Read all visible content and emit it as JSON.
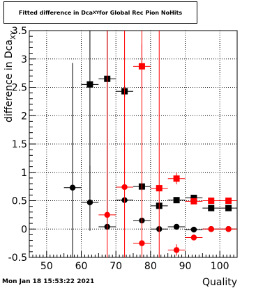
{
  "title_box": {
    "prefix": "Fitted difference in Dca",
    "subscript": "XY",
    "suffix": " for Global Rec Pion NoHits"
  },
  "timestamp": "Mon Jan 18 15:53:22 2021",
  "colors": {
    "series_black": "#000000",
    "series_red": "#ff0000",
    "grid": "#000000"
  },
  "chart_data": {
    "type": "scatter",
    "title": "Fitted difference in DcaXY for Global Rec Pion NoHits",
    "xlabel": "Quality",
    "ylabel": "difference in Dca",
    "ylabel_subscript": "XY",
    "xlim": [
      45,
      105
    ],
    "ylim": [
      -0.5,
      3.5
    ],
    "grid": true,
    "x_ticks": [
      50,
      60,
      70,
      80,
      90,
      100
    ],
    "x_tick_labels": [
      "50",
      "60",
      "70",
      "80",
      "90",
      "100"
    ],
    "y_ticks": [
      -0.5,
      0,
      0.5,
      1,
      1.5,
      2,
      2.5,
      3,
      3.5
    ],
    "y_tick_labels": [
      "-0.5",
      "0",
      "0.5",
      "1",
      "1.5",
      "2",
      "2.5",
      "3",
      "3.5"
    ],
    "series": [
      {
        "color": "#000000",
        "marker": "circle",
        "points": [
          {
            "x": 57.5,
            "y": 0.73,
            "xerr": 2.5,
            "yerr_low": 1.5,
            "yerr_high": 2.2
          },
          {
            "x": 62.5,
            "y": 0.47,
            "xerr": 2.5,
            "yerr_low": 0.5,
            "yerr_high": 0.65
          },
          {
            "x": 67.5,
            "y": 0.04,
            "xerr": 2.5,
            "yerr_low": 0.05,
            "yerr_high": 0.05
          },
          {
            "x": 72.5,
            "y": 0.51,
            "xerr": 2.5,
            "yerr_low": 0.05,
            "yerr_high": 0.05
          },
          {
            "x": 77.5,
            "y": 0.15,
            "xerr": 2.5,
            "yerr_low": 0.05,
            "yerr_high": 0.05
          },
          {
            "x": 82.5,
            "y": 0.0,
            "xerr": 2.5,
            "yerr_low": 0.03,
            "yerr_high": 0.03
          },
          {
            "x": 87.5,
            "y": 0.04,
            "xerr": 2.5,
            "yerr_low": 0.03,
            "yerr_high": 0.03
          },
          {
            "x": 92.5,
            "y": -0.01,
            "xerr": 2.5,
            "yerr_low": 0.02,
            "yerr_high": 0.02
          },
          {
            "x": 97.5,
            "y": 0.0,
            "xerr": 2.5,
            "yerr_low": 0.02,
            "yerr_high": 0.02
          },
          {
            "x": 102.5,
            "y": 0.0,
            "xerr": 2.5,
            "yerr_low": 0.02,
            "yerr_high": 0.02
          }
        ]
      },
      {
        "color": "#000000",
        "marker": "square",
        "points": [
          {
            "x": 62.5,
            "y": 2.55,
            "xerr": 2.5,
            "yerr_low": 2.0,
            "yerr_high": 1.0
          },
          {
            "x": 67.5,
            "y": 2.65,
            "xerr": 2.5,
            "yerr_low": 2.6,
            "yerr_high": 1.0
          },
          {
            "x": 72.5,
            "y": 2.43,
            "xerr": 2.5,
            "yerr_low": 0.1,
            "yerr_high": 0.1
          },
          {
            "x": 77.5,
            "y": 0.75,
            "xerr": 2.5,
            "yerr_low": 0.08,
            "yerr_high": 0.08
          },
          {
            "x": 82.5,
            "y": 0.41,
            "xerr": 2.5,
            "yerr_low": 0.05,
            "yerr_high": 0.05
          },
          {
            "x": 87.5,
            "y": 0.51,
            "xerr": 2.5,
            "yerr_low": 0.05,
            "yerr_high": 0.05
          },
          {
            "x": 92.5,
            "y": 0.55,
            "xerr": 2.5,
            "yerr_low": 0.05,
            "yerr_high": 0.05
          },
          {
            "x": 97.5,
            "y": 0.37,
            "xerr": 2.5,
            "yerr_low": 0.05,
            "yerr_high": 0.05
          },
          {
            "x": 102.5,
            "y": 0.37,
            "xerr": 2.5,
            "yerr_low": 0.03,
            "yerr_high": 0.03
          }
        ]
      },
      {
        "color": "#ff0000",
        "marker": "circle",
        "points": [
          {
            "x": 67.5,
            "y": 0.25,
            "xerr": 2.5,
            "yerr_low": 1.0,
            "yerr_high": 3.5
          },
          {
            "x": 72.5,
            "y": 0.74,
            "xerr": 2.5,
            "yerr_low": 1.3,
            "yerr_high": 3.0
          },
          {
            "x": 77.5,
            "y": -0.25,
            "xerr": 2.5,
            "yerr_low": 0.3,
            "yerr_high": 3.8
          },
          {
            "x": 87.5,
            "y": -0.37,
            "xerr": 2.5,
            "yerr_low": 0.1,
            "yerr_high": 0.1
          },
          {
            "x": 92.5,
            "y": -0.15,
            "xerr": 2.5,
            "yerr_low": 0.05,
            "yerr_high": 0.05
          },
          {
            "x": 97.5,
            "y": 0.0,
            "xerr": 2.5,
            "yerr_low": 0.02,
            "yerr_high": 0.02
          },
          {
            "x": 102.5,
            "y": 0.0,
            "xerr": 2.5,
            "yerr_low": 0.02,
            "yerr_high": 0.02
          }
        ]
      },
      {
        "color": "#ff0000",
        "marker": "square",
        "points": [
          {
            "x": 77.5,
            "y": 2.87,
            "xerr": 2.5,
            "yerr_low": 0.4,
            "yerr_high": 0.4
          },
          {
            "x": 82.5,
            "y": 0.72,
            "xerr": 2.5,
            "yerr_low": 1.3,
            "yerr_high": 3.0
          },
          {
            "x": 87.5,
            "y": 0.89,
            "xerr": 2.5,
            "yerr_low": 0.1,
            "yerr_high": 0.1
          },
          {
            "x": 92.5,
            "y": 0.49,
            "xerr": 2.5,
            "yerr_low": 0.05,
            "yerr_high": 0.05
          },
          {
            "x": 97.5,
            "y": 0.5,
            "xerr": 2.5,
            "yerr_low": 0.05,
            "yerr_high": 0.05
          },
          {
            "x": 102.5,
            "y": 0.5,
            "xerr": 2.5,
            "yerr_low": 0.03,
            "yerr_high": 0.03
          }
        ]
      }
    ]
  }
}
